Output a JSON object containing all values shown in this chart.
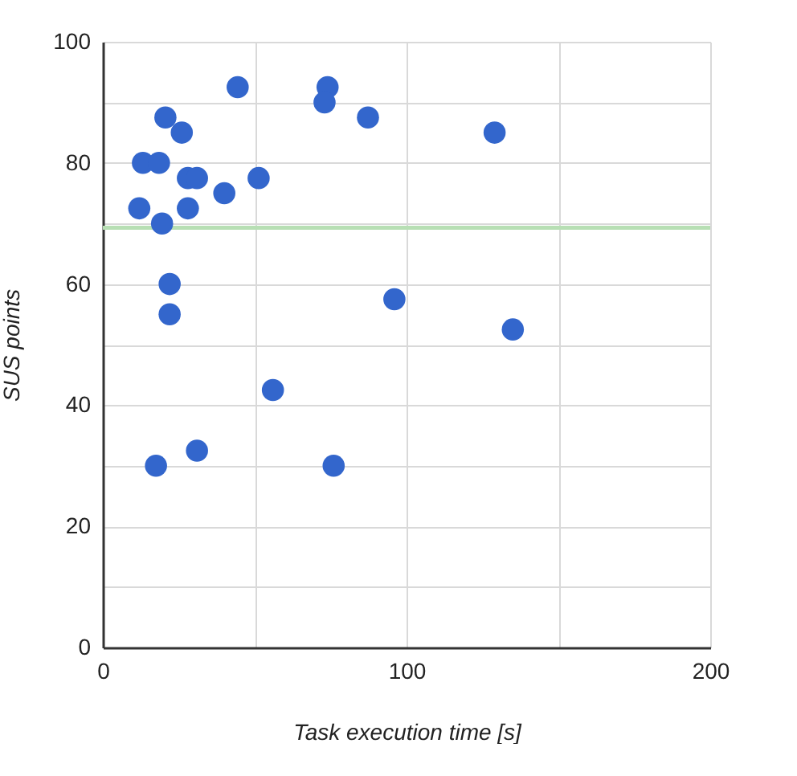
{
  "chart_data": {
    "type": "scatter",
    "xlabel": "Task execution time [s]",
    "ylabel": "SUS points",
    "x": [
      44.4,
      74,
      73,
      87.3,
      129,
      20.6,
      26,
      13.2,
      18.5,
      28,
      31,
      51.3,
      40,
      12,
      28,
      19.5,
      22,
      22,
      96,
      135,
      56,
      31,
      17.5,
      76
    ],
    "series": [
      {
        "color": "#3366cc",
        "values": [
          92.5,
          92.5,
          90,
          87.5,
          85,
          87.5,
          85,
          80,
          80,
          77.5,
          77.5,
          77.5,
          75,
          72.5,
          72.5,
          70,
          60,
          55,
          57.5,
          52.5,
          42.5,
          32.5,
          30,
          30
        ]
      }
    ],
    "xlim": [
      0,
      200
    ],
    "xticks": [
      0,
      {
        "value": 50,
        "label": null
      },
      100,
      {
        "value": 150,
        "label": null
      },
      200
    ],
    "ylim": [
      0,
      100
    ],
    "yticks": [
      0,
      {
        "value": 10,
        "label": null
      },
      20,
      {
        "value": 30,
        "label": null
      },
      40,
      {
        "value": 50,
        "label": null
      },
      60,
      {
        "value": 70,
        "label": null
      },
      80,
      {
        "value": 90,
        "label": null
      },
      100
    ],
    "ref_lines": [
      {
        "axis": "y",
        "value": 69.3,
        "color": "#b7dfb4"
      }
    ],
    "grid": true,
    "marker": "circle",
    "legend": false
  }
}
